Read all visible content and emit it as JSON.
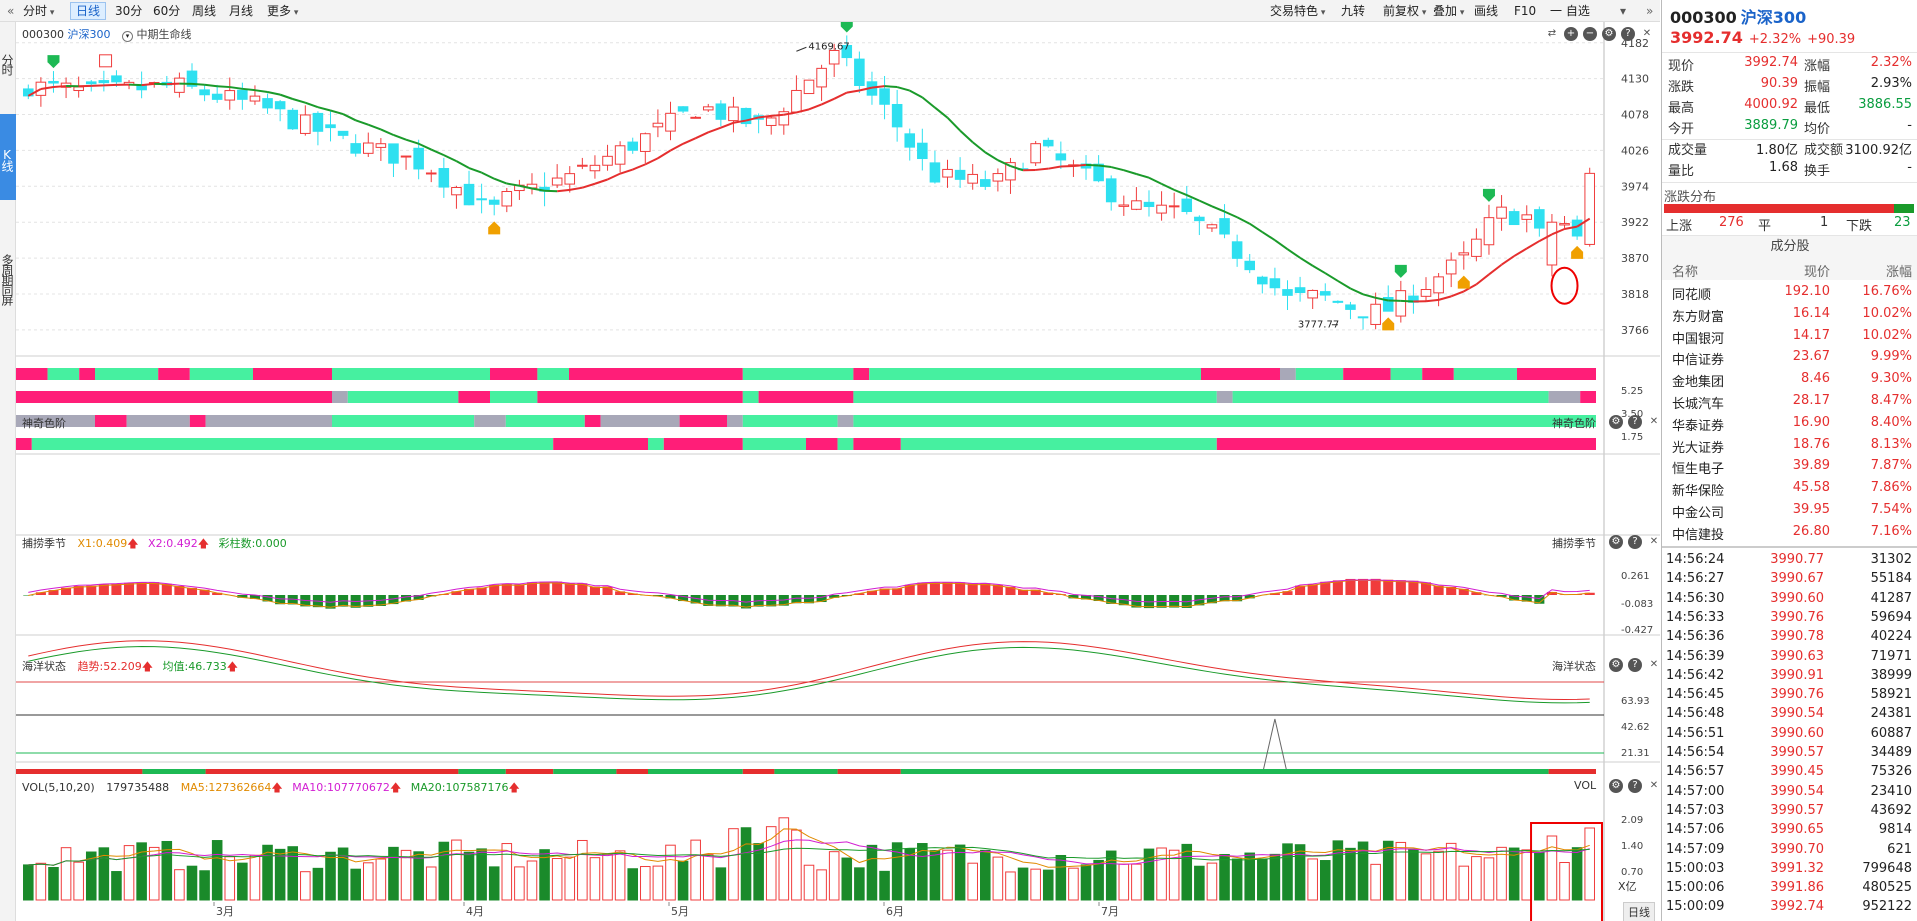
{
  "toolbar": {
    "left_tabs": [
      {
        "label": "分时",
        "arrow": true
      },
      {
        "label": "日线",
        "active": true
      },
      {
        "label": "30分"
      },
      {
        "label": "60分"
      },
      {
        "label": "周线"
      },
      {
        "label": "月线"
      },
      {
        "label": "更多",
        "arrow": true
      }
    ],
    "right_tools": [
      {
        "label": "交易特色",
        "arrow": true
      },
      {
        "label": "九转"
      },
      {
        "label": "前复权",
        "arrow": true
      },
      {
        "label": "叠加",
        "arrow": true
      },
      {
        "label": "画线"
      },
      {
        "label": "F10"
      },
      {
        "label": "一 自选"
      }
    ],
    "collapse_left": "«",
    "collapse_right": "»"
  },
  "sidebar": {
    "items": [
      {
        "label": "分时"
      },
      {
        "label": "K线",
        "active": true
      },
      {
        "label": "多周期同屏"
      }
    ]
  },
  "main_chart": {
    "code": "000300",
    "name": "沪深300",
    "indicator_label": "中期生命线",
    "high_label": "4169.67",
    "low_label": "3777.77",
    "price_axis": [
      "4182",
      "4130",
      "4078",
      "4026",
      "3974",
      "3922",
      "3870",
      "3818",
      "3766"
    ],
    "months": [
      "3月",
      "4月",
      "5月",
      "6月",
      "7月"
    ]
  },
  "panel_color": {
    "title": "神奇色阶",
    "title_right": "神奇色阶",
    "axis": [
      "5.25",
      "3.50",
      "1.75"
    ]
  },
  "panel_season": {
    "title": "捕捞季节",
    "x1": "X1:0.409",
    "x2": "X2:0.492",
    "count": "彩柱数:0.000",
    "title_right": "捕捞季节",
    "axis": [
      "0.261",
      "-0.083",
      "-0.427"
    ]
  },
  "panel_ocean": {
    "title": "海洋状态",
    "trend": "趋势:52.209",
    "avg": "均值:46.733",
    "title_right": "海洋状态",
    "axis": [
      "63.93",
      "42.62",
      "21.31"
    ]
  },
  "panel_vol": {
    "title": "VOL(5,10,20)",
    "vol": "179735488",
    "ma5": "MA5:127362664",
    "ma10": "MA10:107770672",
    "ma20": "MA20:107587176",
    "title_right": "VOL",
    "axis": [
      "2.09",
      "1.40",
      "0.70"
    ],
    "unit": "X亿"
  },
  "period_badge": "日线",
  "colors": {
    "up": "#f03c3c",
    "down_k": "#2ee0f0",
    "down_bar": "#1a8a2a",
    "pink": "#ff1e78",
    "mint": "#46f0a0",
    "gray": "#a8a8b8",
    "ma_up": "#e52e2e",
    "ma_dn": "#1a9a2a"
  },
  "quote": {
    "code": "000300",
    "name": "沪深300",
    "price": "3992.74",
    "pct": "+2.32%",
    "chg": "+90.39",
    "rows": [
      [
        {
          "label": "现价",
          "value": "3992.74",
          "cls": "up"
        },
        {
          "label": "涨幅",
          "value": "2.32%",
          "cls": "up"
        }
      ],
      [
        {
          "label": "涨跌",
          "value": "90.39",
          "cls": "up"
        },
        {
          "label": "振幅",
          "value": "2.93%",
          "cls": ""
        }
      ],
      [
        {
          "label": "最高",
          "value": "4000.92",
          "cls": "up"
        },
        {
          "label": "最低",
          "value": "3886.55",
          "cls": "dn"
        }
      ],
      [
        {
          "label": "今开",
          "value": "3889.79",
          "cls": "dn"
        },
        {
          "label": "均价",
          "value": "-",
          "cls": ""
        }
      ],
      [
        {
          "label": "成交量",
          "value": "1.80亿",
          "cls": ""
        },
        {
          "label": "成交额",
          "value": "3100.92亿",
          "cls": ""
        }
      ],
      [
        {
          "label": "量比",
          "value": "1.68",
          "cls": ""
        },
        {
          "label": "换手",
          "value": "-",
          "cls": ""
        }
      ]
    ],
    "dist_title": "涨跌分布",
    "up_label": "上涨",
    "up_count": "276",
    "flat_label": "平",
    "flat_count": "1",
    "down_label": "下跌",
    "down_count": "23"
  },
  "components": {
    "title": "成分股",
    "headers": [
      "名称",
      "现价",
      "涨幅"
    ],
    "rows": [
      [
        "同花顺",
        "192.10",
        "16.76%"
      ],
      [
        "东方财富",
        "16.14",
        "10.02%"
      ],
      [
        "中国银河",
        "14.17",
        "10.02%"
      ],
      [
        "中信证券",
        "23.67",
        "9.99%"
      ],
      [
        "金地集团",
        "8.46",
        "9.30%"
      ],
      [
        "长城汽车",
        "28.17",
        "8.47%"
      ],
      [
        "华泰证券",
        "16.90",
        "8.40%"
      ],
      [
        "光大证券",
        "18.76",
        "8.13%"
      ],
      [
        "恒生电子",
        "39.89",
        "7.87%"
      ],
      [
        "新华保险",
        "45.58",
        "7.86%"
      ],
      [
        "中金公司",
        "39.95",
        "7.54%"
      ],
      [
        "中信建投",
        "26.80",
        "7.16%"
      ]
    ]
  },
  "ticks": [
    [
      "14:56:24",
      "3990.77",
      "31302"
    ],
    [
      "14:56:27",
      "3990.67",
      "55184"
    ],
    [
      "14:56:30",
      "3990.60",
      "41287"
    ],
    [
      "14:56:33",
      "3990.76",
      "59694"
    ],
    [
      "14:56:36",
      "3990.78",
      "40224"
    ],
    [
      "14:56:39",
      "3990.63",
      "71971"
    ],
    [
      "14:56:42",
      "3990.91",
      "38999"
    ],
    [
      "14:56:45",
      "3990.76",
      "58921"
    ],
    [
      "14:56:48",
      "3990.54",
      "24381"
    ],
    [
      "14:56:51",
      "3990.60",
      "60887"
    ],
    [
      "14:56:54",
      "3990.57",
      "34489"
    ],
    [
      "14:56:57",
      "3990.45",
      "75326"
    ],
    [
      "14:57:00",
      "3990.54",
      "23410"
    ],
    [
      "14:57:03",
      "3990.57",
      "43692"
    ],
    [
      "14:57:06",
      "3990.65",
      "9814"
    ],
    [
      "14:57:09",
      "3990.70",
      "621"
    ],
    [
      "15:00:03",
      "3991.32",
      "799648"
    ],
    [
      "15:00:06",
      "3991.86",
      "480525"
    ],
    [
      "15:00:09",
      "3992.74",
      "952122"
    ]
  ],
  "chart_data": {
    "type": "candlestick",
    "title": "000300 沪深300",
    "price_axis_ticks": [
      4182,
      4130,
      4078,
      4026,
      3974,
      3922,
      3870,
      3818,
      3766
    ],
    "ylim": [
      3760,
      4186
    ],
    "months": [
      "3月",
      "4月",
      "5月",
      "6月",
      "7月"
    ],
    "annotations": {
      "high": 4169.67,
      "low": 3777.77
    },
    "series": [
      {
        "name": "中期生命线"
      },
      {
        "name": "VOL"
      }
    ]
  }
}
